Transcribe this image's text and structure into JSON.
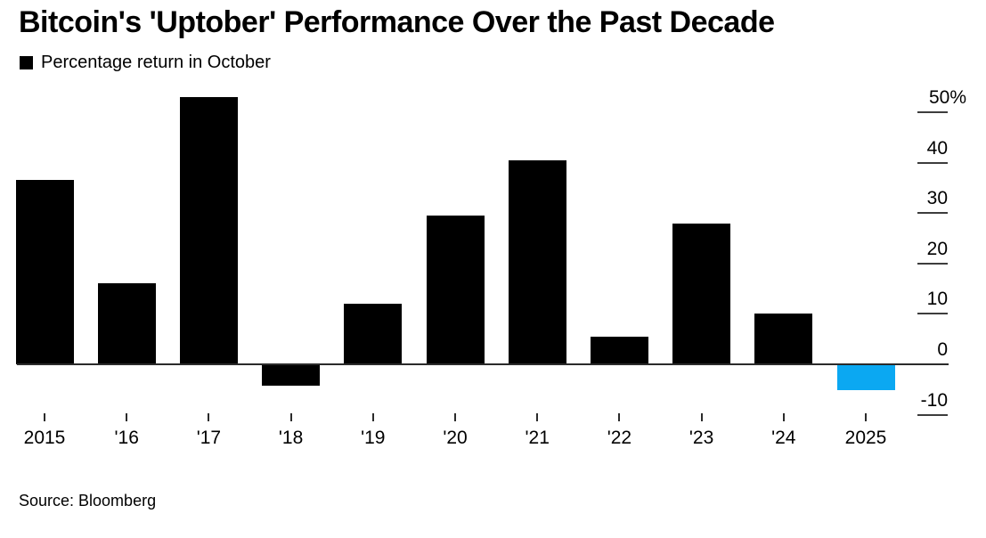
{
  "page": {
    "title": "Bitcoin's 'Uptober' Performance Over the Past Decade",
    "legend_label": "Percentage return in October",
    "source_note": "Source: Bloomberg"
  },
  "colors": {
    "bar_default": "#000000",
    "bar_highlight": "#0BA8F2",
    "axis_line": "#2b2b2b",
    "tick_dash": "#3d3d3d",
    "text": "#000000",
    "background": "#ffffff"
  },
  "chart_data": {
    "type": "bar",
    "title": "Bitcoin's 'Uptober' Performance Over the Past Decade",
    "legend": [
      "Percentage return in October"
    ],
    "legend_position": "top-left",
    "y_axis_side": "right",
    "unit_suffix": "%",
    "categories": [
      "2015",
      "'16",
      "'17",
      "'18",
      "'19",
      "'20",
      "'21",
      "'22",
      "'23",
      "'24",
      "2025"
    ],
    "values": [
      36.5,
      16,
      53,
      -4,
      12,
      29.5,
      40.5,
      5.5,
      28,
      10,
      -5
    ],
    "highlight_index": 10,
    "highlight_note": "2025 bar shown in blue (month-to-date negative return)",
    "yticks": [
      50,
      40,
      30,
      20,
      10,
      0,
      -10
    ],
    "ytick_labels": [
      "50%",
      "40",
      "30",
      "20",
      "10",
      "0",
      "-10"
    ],
    "ylim": [
      -12,
      54
    ],
    "grid": "short right-side dashes at each y tick",
    "xlabel": "",
    "ylabel": "",
    "source": "Source: Bloomberg"
  }
}
